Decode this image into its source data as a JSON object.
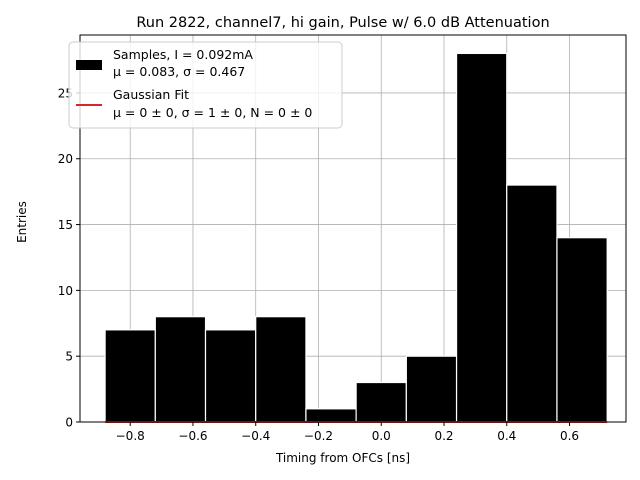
{
  "chart_data": {
    "type": "bar",
    "title": "Run 2822, channel7, hi gain, Pulse w/ 6.0 dB Attenuation",
    "xlabel": "Timing from OFCs [ns]",
    "ylabel": "Entries",
    "xlim": [
      -0.96,
      0.78
    ],
    "ylim": [
      0,
      29.4
    ],
    "xticks": [
      -0.8,
      -0.6,
      -0.4,
      -0.2,
      0.0,
      0.2,
      0.4,
      0.6
    ],
    "xtick_labels": [
      "−0.8",
      "−0.6",
      "−0.4",
      "−0.2",
      "0.0",
      "0.2",
      "0.4",
      "0.6"
    ],
    "yticks": [
      0,
      5,
      10,
      15,
      20,
      25
    ],
    "ytick_labels": [
      "0",
      "5",
      "10",
      "15",
      "20",
      "25"
    ],
    "grid": true,
    "legend_position": "upper-left",
    "bins": [
      {
        "x0": -0.88,
        "x1": -0.72,
        "value": 7
      },
      {
        "x0": -0.72,
        "x1": -0.56,
        "value": 8
      },
      {
        "x0": -0.56,
        "x1": -0.4,
        "value": 7
      },
      {
        "x0": -0.4,
        "x1": -0.24,
        "value": 8
      },
      {
        "x0": -0.24,
        "x1": -0.08,
        "value": 1
      },
      {
        "x0": -0.08,
        "x1": 0.08,
        "value": 3
      },
      {
        "x0": 0.08,
        "x1": 0.24,
        "value": 5
      },
      {
        "x0": 0.24,
        "x1": 0.4,
        "value": 28
      },
      {
        "x0": 0.4,
        "x1": 0.56,
        "value": 18
      },
      {
        "x0": 0.56,
        "x1": 0.72,
        "value": 14
      }
    ],
    "series": [
      {
        "name": "Samples, I = 0.092mA",
        "stats_line": "μ = 0.083, σ = 0.467",
        "kind": "histogram",
        "color": "#000000"
      },
      {
        "name": "Gaussian Fit",
        "stats_line": "μ = 0 ± 0, σ = 1 ± 0, N = 0 ± 0",
        "kind": "line",
        "color": "#d62728",
        "x_range": [
          -0.88,
          0.72
        ],
        "y": 0
      }
    ]
  }
}
